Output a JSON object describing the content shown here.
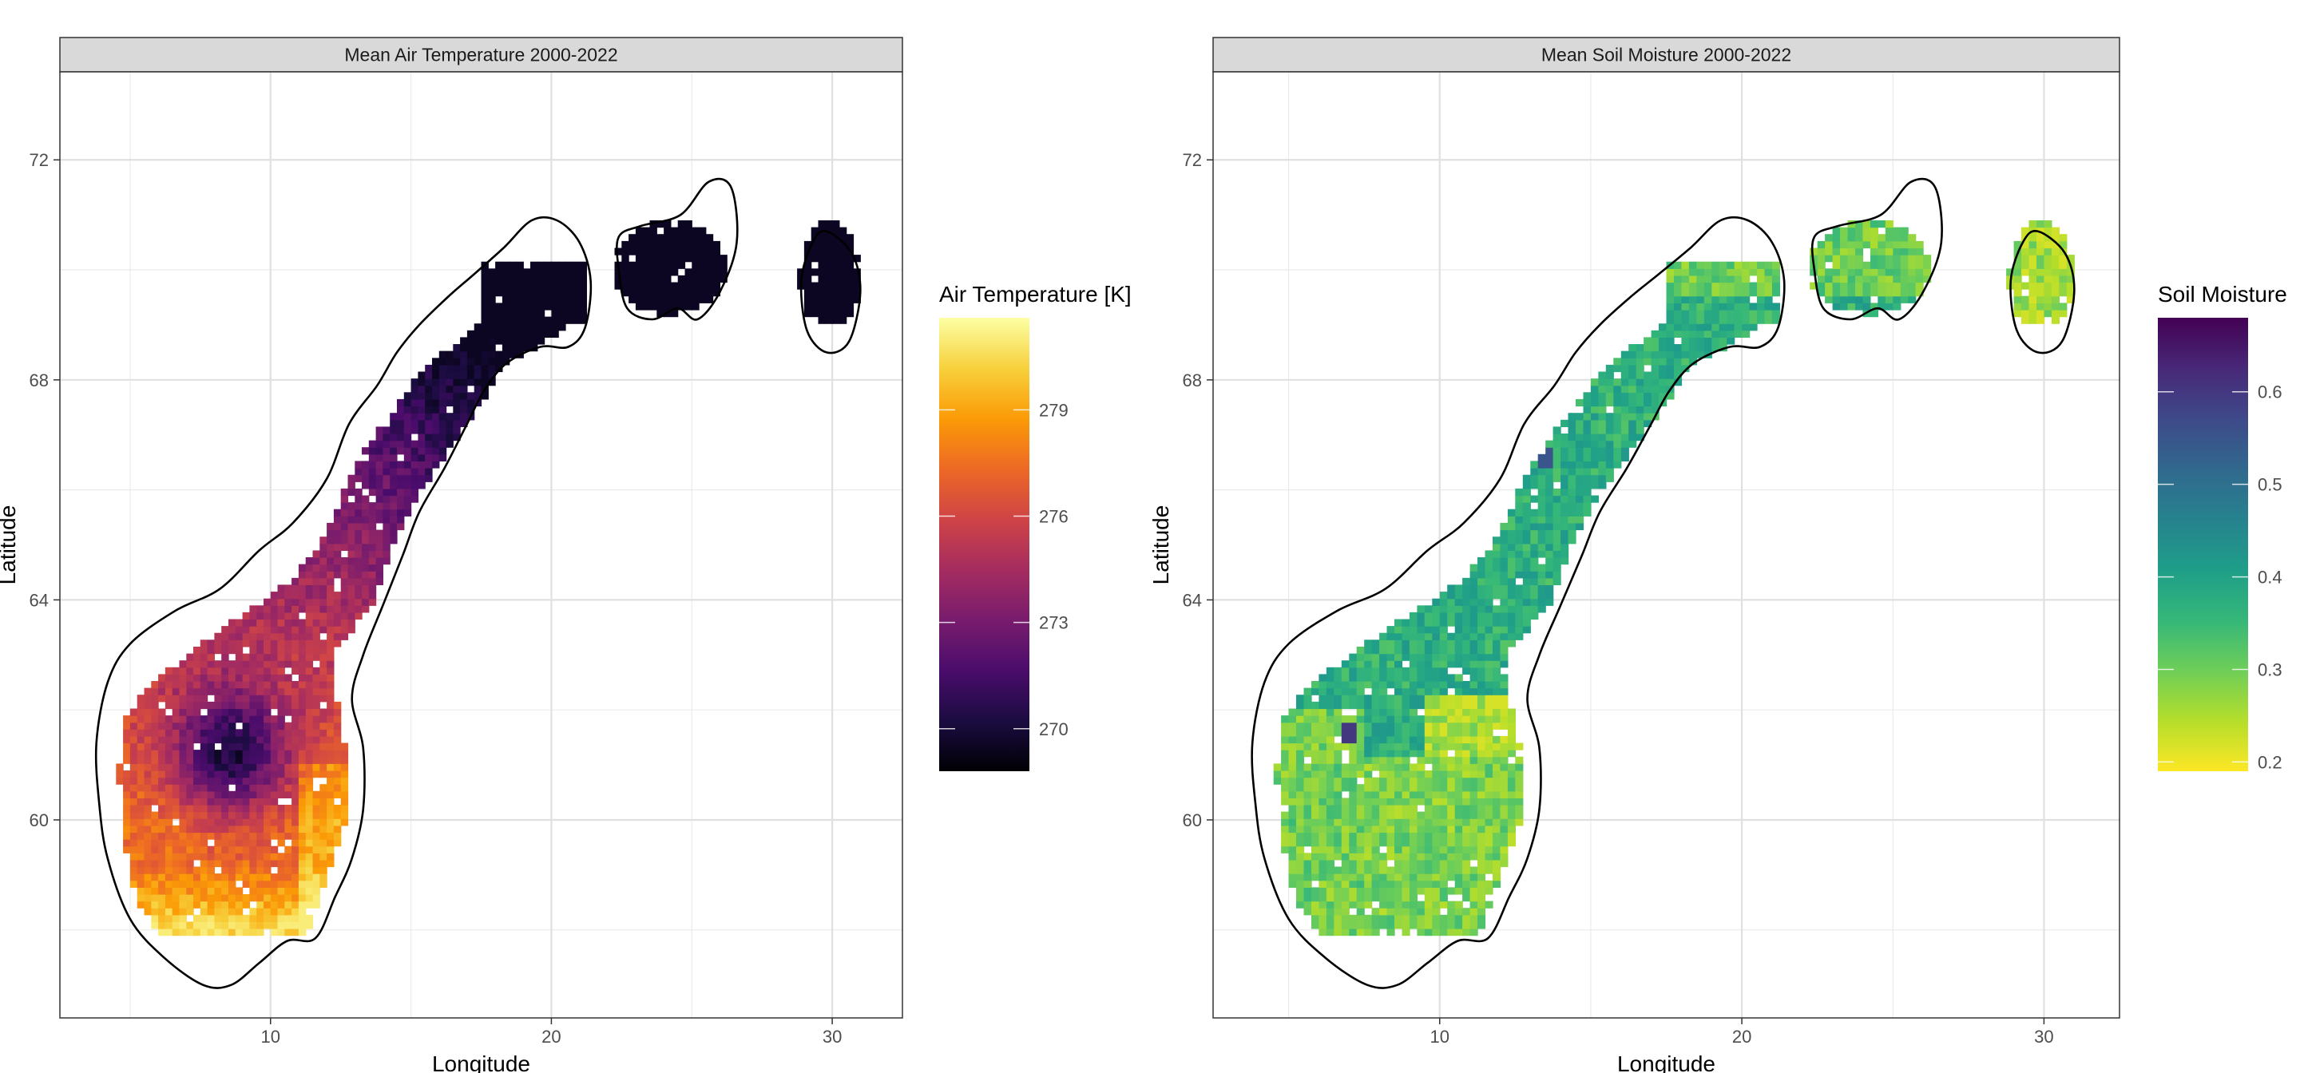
{
  "chart_data": [
    {
      "type": "heatmap",
      "title": "Mean Air Temperature 2000-2022",
      "xlabel": "Longitude",
      "ylabel": "Latitude",
      "xlim": [
        2.5,
        32.5
      ],
      "ylim": [
        56.4,
        73.6
      ],
      "xticks": [
        10,
        20,
        30
      ],
      "yticks": [
        60,
        64,
        68,
        72
      ],
      "grid": true,
      "legend": {
        "title": "Air Temperature [K]",
        "placement": "right",
        "ticks": [
          270,
          273,
          276,
          279
        ],
        "range": [
          268.8,
          281.6
        ],
        "palette": "inferno",
        "colors": [
          "#000004",
          "#1b0c41",
          "#4a0c6b",
          "#781c6d",
          "#a52c60",
          "#cf4446",
          "#ed6925",
          "#fb9b06",
          "#f7d13d",
          "#fcffa4"
        ]
      },
      "field_description_range": {
        "min": 269.5,
        "max": 281
      }
    },
    {
      "type": "heatmap",
      "title": "Mean Soil Moisture 2000-2022",
      "xlabel": "Longitude",
      "ylabel": "Latitude",
      "xlim": [
        2.5,
        32.5
      ],
      "ylim": [
        56.4,
        73.6
      ],
      "xticks": [
        10,
        20,
        30
      ],
      "yticks": [
        60,
        64,
        68,
        72
      ],
      "grid": true,
      "legend": {
        "title": "Soil Moisture",
        "placement": "right",
        "ticks": [
          0.2,
          0.3,
          0.4,
          0.5,
          0.6
        ],
        "range": [
          0.19,
          0.68
        ],
        "palette": "viridis_reversed",
        "colors": [
          "#fde725",
          "#b5de2b",
          "#6ece58",
          "#35b779",
          "#1f9e89",
          "#26828e",
          "#31688e",
          "#3e4989",
          "#482878",
          "#440154"
        ]
      },
      "field_description_range": {
        "min": 0.22,
        "max": 0.65
      }
    }
  ]
}
